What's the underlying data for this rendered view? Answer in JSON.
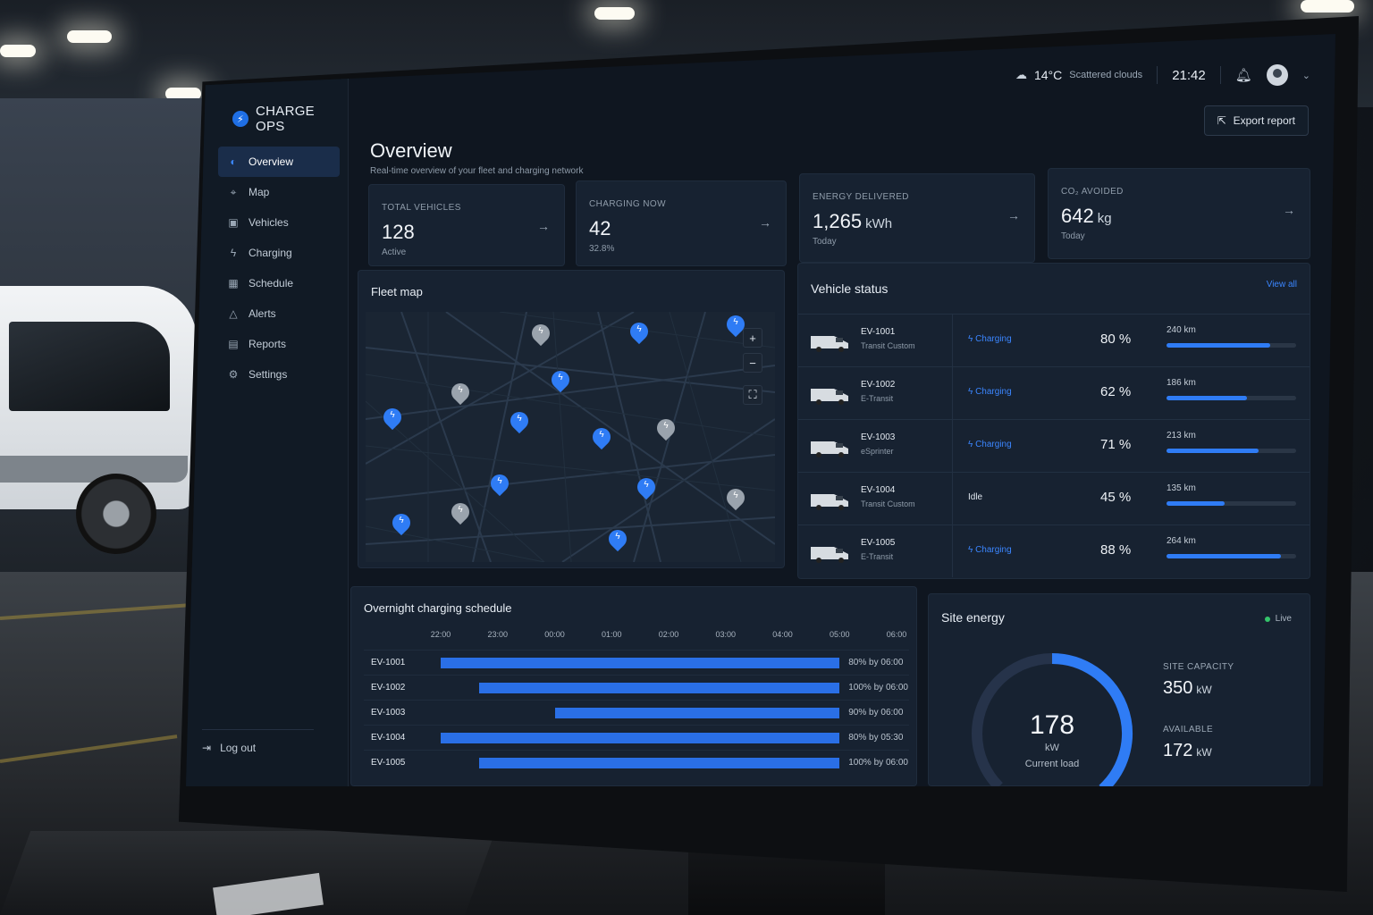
{
  "app": {
    "brand": "CHARGE OPS",
    "brand_icon": "bolt-icon"
  },
  "colors": {
    "accent": "#2f7cf5",
    "background": "#0f1620",
    "card": "#172231",
    "live": "#34c46b"
  },
  "topbar": {
    "temperature": "14°C",
    "weather": "Scattered clouds",
    "time": "21:42",
    "export_label": "Export report"
  },
  "sidebar": {
    "items": [
      {
        "label": "Overview",
        "icon": "overview-icon",
        "active": true
      },
      {
        "label": "Map",
        "icon": "map-icon"
      },
      {
        "label": "Vehicles",
        "icon": "vehicle-icon"
      },
      {
        "label": "Charging",
        "icon": "bolt-icon"
      },
      {
        "label": "Schedule",
        "icon": "calendar-icon"
      },
      {
        "label": "Alerts",
        "icon": "alert-icon"
      },
      {
        "label": "Reports",
        "icon": "report-icon"
      },
      {
        "label": "Settings",
        "icon": "gear-icon"
      }
    ],
    "logout": "Log out"
  },
  "header": {
    "title": "Overview",
    "subtitle": "Real-time overview of your fleet and charging network"
  },
  "stats": [
    {
      "label": "TOTAL VEHICLES",
      "value": "128",
      "unit": "",
      "sub": "Active"
    },
    {
      "label": "CHARGING NOW",
      "value": "42",
      "unit": "",
      "sub": "32.8%"
    },
    {
      "label": "ENERGY DELIVERED",
      "value": "1,265",
      "unit": "kWh",
      "sub": "Today"
    },
    {
      "label": "CO₂ AVOIDED",
      "value": "642",
      "unit": "kg",
      "sub": "Today"
    }
  ],
  "fleet_map": {
    "title": "Fleet map",
    "zoom_in": "+",
    "zoom_out": "−",
    "fullscreen": "⛶"
  },
  "vehicle_status": {
    "title": "Vehicle status",
    "view_all": "View all",
    "rows": [
      {
        "id": "EV-1001",
        "model": "Transit Custom",
        "status": "Charging",
        "charging": true,
        "soc": "80 %",
        "range": "240 km",
        "soc_fraction": 0.8
      },
      {
        "id": "EV-1002",
        "model": "E-Transit",
        "status": "Charging",
        "charging": true,
        "soc": "62 %",
        "range": "186 km",
        "soc_fraction": 0.62
      },
      {
        "id": "EV-1003",
        "model": "eSprinter",
        "status": "Charging",
        "charging": true,
        "soc": "71 %",
        "range": "213 km",
        "soc_fraction": 0.71
      },
      {
        "id": "EV-1004",
        "model": "Transit Custom",
        "status": "Idle",
        "charging": false,
        "soc": "45 %",
        "range": "135 km",
        "soc_fraction": 0.45
      },
      {
        "id": "EV-1005",
        "model": "E-Transit",
        "status": "Charging",
        "charging": true,
        "soc": "88 %",
        "range": "264 km",
        "soc_fraction": 0.88
      }
    ]
  },
  "schedule": {
    "title": "Overnight charging schedule",
    "hours": [
      "22:00",
      "23:00",
      "00:00",
      "01:00",
      "02:00",
      "03:00",
      "04:00",
      "05:00",
      "06:00"
    ],
    "rows": [
      {
        "id": "EV-1001",
        "start": "22:00",
        "end": "05:00",
        "label": "80% by 06:00"
      },
      {
        "id": "EV-1002",
        "start": "22:40",
        "end": "05:00",
        "label": "100% by 06:00"
      },
      {
        "id": "EV-1003",
        "start": "00:00",
        "end": "05:00",
        "label": "90% by 06:00"
      },
      {
        "id": "EV-1004",
        "start": "22:00",
        "end": "05:00",
        "label": "80% by 05:30"
      },
      {
        "id": "EV-1005",
        "start": "22:40",
        "end": "05:00",
        "label": "100% by 06:00"
      }
    ]
  },
  "site_energy": {
    "title": "Site energy",
    "live": "Live",
    "current_load": "178",
    "current_load_unit": "kW",
    "current_load_label": "Current load",
    "capacity_label": "SITE CAPACITY",
    "capacity": "350",
    "capacity_unit": "kW",
    "available_label": "AVAILABLE",
    "available": "172",
    "available_unit": "kW",
    "load_fraction": 0.51
  }
}
